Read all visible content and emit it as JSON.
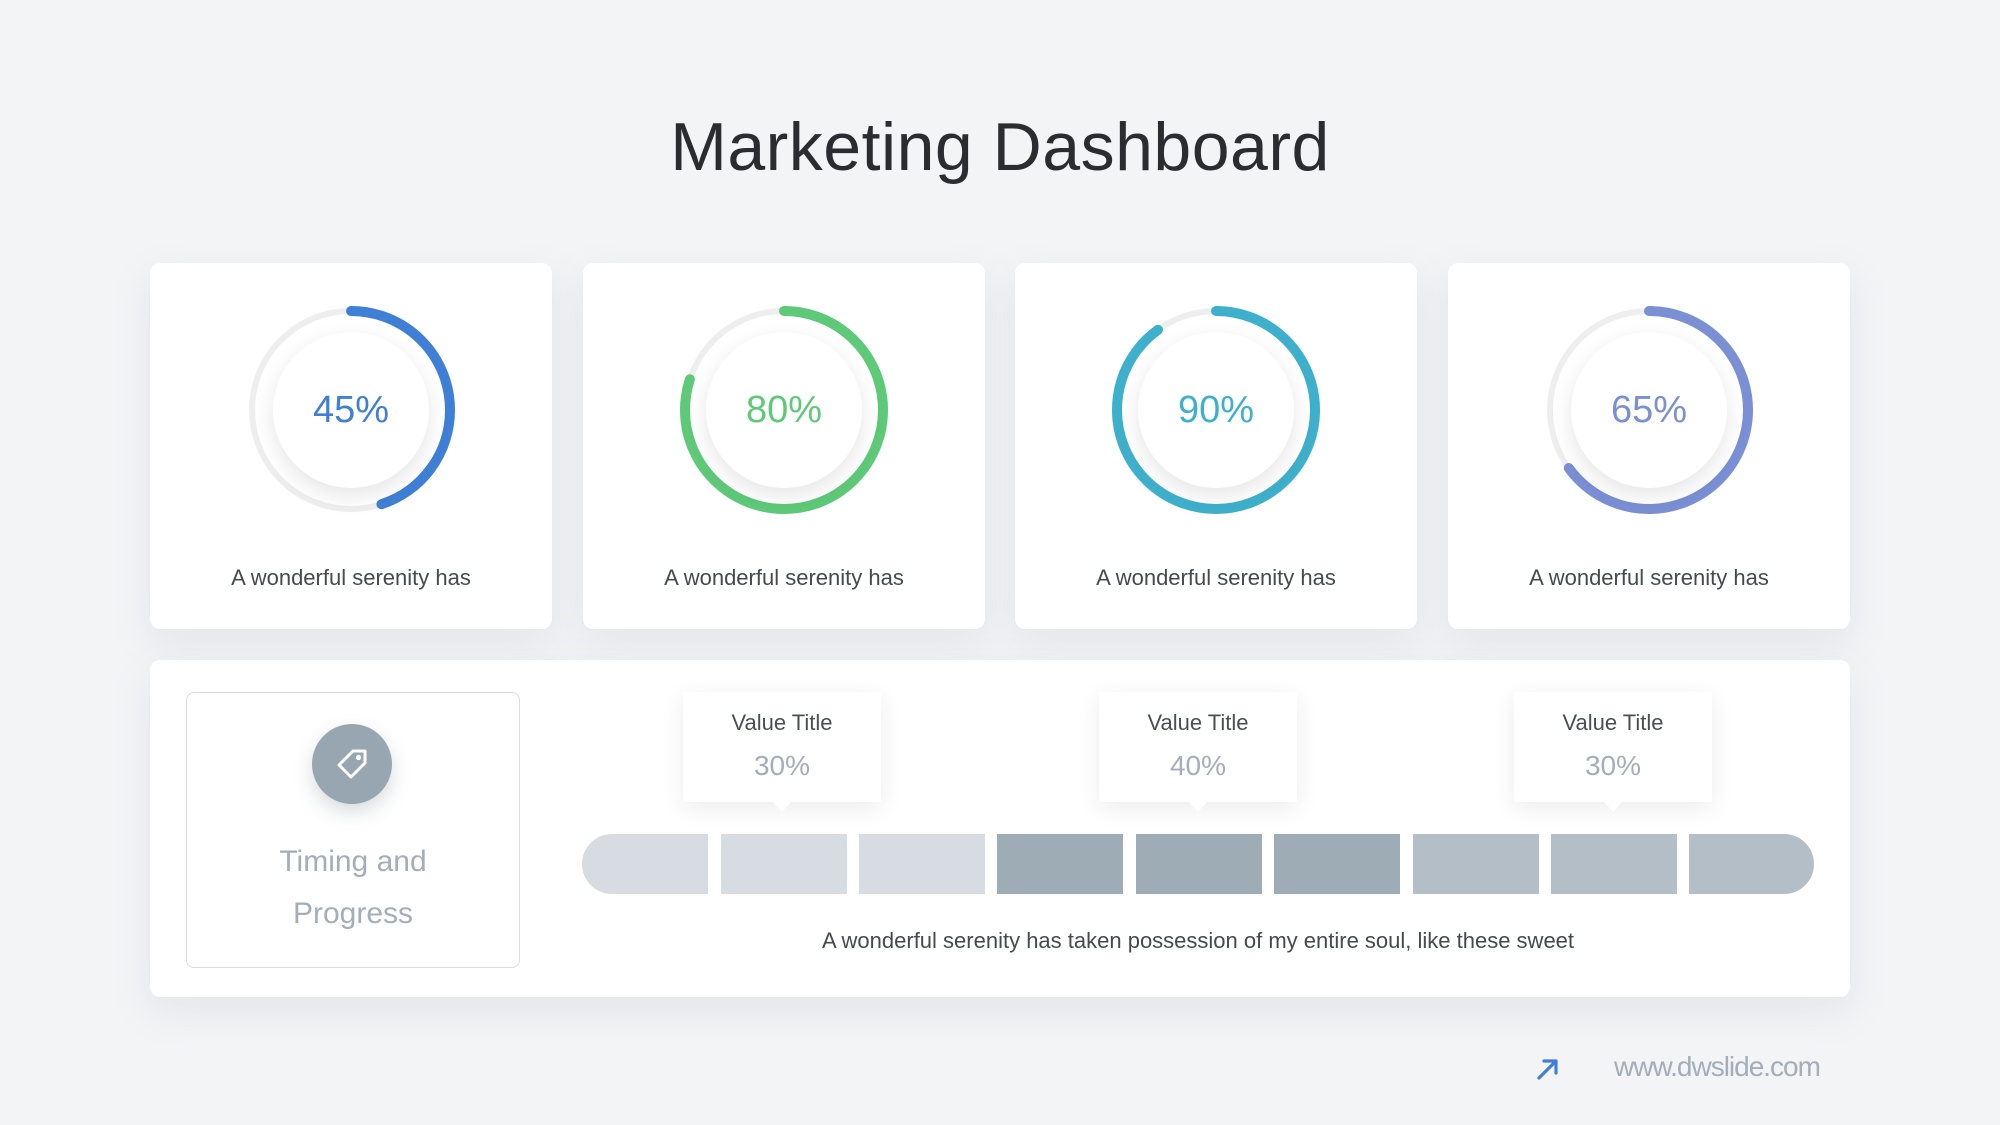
{
  "page": {
    "title": "Marketing Dashboard"
  },
  "cards": [
    {
      "percent": "45%",
      "value": 0.45,
      "caption": "A wonderful serenity has",
      "color": "#3f7fd6"
    },
    {
      "percent": "80%",
      "value": 0.8,
      "caption": "A wonderful serenity has",
      "color": "#5ec978"
    },
    {
      "percent": "90%",
      "value": 0.9,
      "caption": "A wonderful serenity has",
      "color": "#3eb0cc"
    },
    {
      "percent": "65%",
      "value": 0.65,
      "caption": "A wonderful serenity has",
      "color": "#7a8fd4"
    }
  ],
  "timing": {
    "icon": "tag-icon",
    "label_line1": "Timing and",
    "label_line2": "Progress",
    "callouts": [
      {
        "title": "Value Title",
        "value": "30%"
      },
      {
        "title": "Value Title",
        "value": "40%"
      },
      {
        "title": "Value Title",
        "value": "30%"
      }
    ],
    "segment_colors": [
      "#d6dce1",
      "#d6dce1",
      "#d6dce1",
      "#9eacb6",
      "#9eacb6",
      "#9eacb6",
      "#b4bec6",
      "#b4bec6",
      "#b4bec6"
    ],
    "caption": "A wonderful serenity has taken possession of my entire soul, like these sweet"
  },
  "footer": {
    "icon": "arrow-up-right-icon",
    "url": "www.dwslide.com"
  },
  "colors": {
    "track": "#eeeeee",
    "accent": "#3f7fd6"
  }
}
